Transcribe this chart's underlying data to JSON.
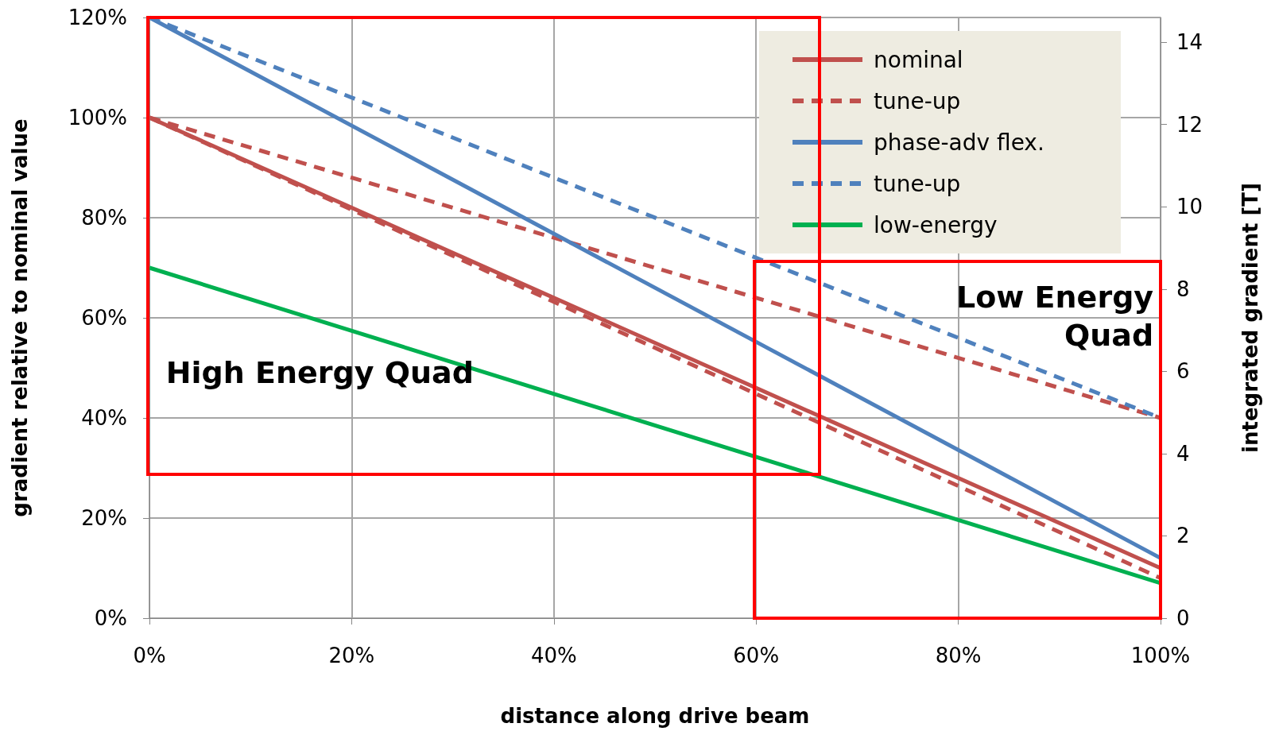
{
  "chart_data": {
    "type": "line",
    "xlabel": "distance along drive beam",
    "ylabel": "gradient relative to nominal value",
    "y2label": "integrated gradient [T]",
    "x": [
      0,
      100
    ],
    "xlim": [
      0,
      100
    ],
    "xticks": [
      {
        "value": 0,
        "label": "0%"
      },
      {
        "value": 20,
        "label": "20%"
      },
      {
        "value": 40,
        "label": "40%"
      },
      {
        "value": 60,
        "label": "60%"
      },
      {
        "value": 80,
        "label": "80%"
      },
      {
        "value": 100,
        "label": "100%"
      }
    ],
    "ylim": [
      0,
      120
    ],
    "yticks": [
      {
        "value": 0,
        "label": "0%"
      },
      {
        "value": 20,
        "label": "20%"
      },
      {
        "value": 40,
        "label": "40%"
      },
      {
        "value": 60,
        "label": "60%"
      },
      {
        "value": 80,
        "label": "80%"
      },
      {
        "value": 100,
        "label": "100%"
      },
      {
        "value": 120,
        "label": "120%"
      }
    ],
    "y2lim": [
      0,
      14.6
    ],
    "y2ticks": [
      0,
      2,
      4,
      6,
      8,
      10,
      12,
      14
    ],
    "series": [
      {
        "name": "nominal",
        "color": "#c0504d",
        "values": [
          100,
          10
        ],
        "line_style": "solid"
      },
      {
        "name": "tune-up",
        "color": "#c0504d",
        "values": [
          100,
          40
        ],
        "line_style": "dashed"
      },
      {
        "name": "phase-adv flex.",
        "color": "#4f81bd",
        "values": [
          120,
          12
        ],
        "line_style": "solid"
      },
      {
        "name": "tune-up",
        "color": "#4f81bd",
        "values": [
          120,
          40
        ],
        "line_style": "dashed"
      },
      {
        "name": "low-energy",
        "color": "#00b050",
        "values": [
          70,
          7
        ],
        "line_style": "solid"
      },
      {
        "color": "#c0504d",
        "values": [
          100,
          8
        ],
        "line_style": "dashed"
      }
    ],
    "grid": true,
    "legend": "top right",
    "marker": "none",
    "annotations": [
      "High Energy Quad",
      "Low Energy Quad"
    ]
  }
}
